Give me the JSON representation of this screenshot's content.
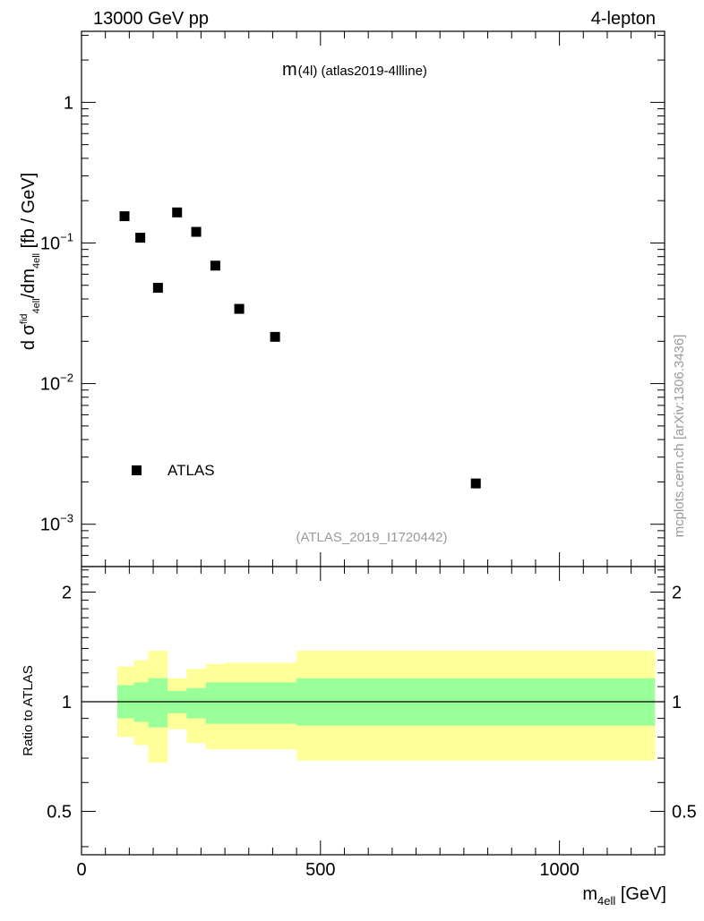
{
  "header": {
    "left_label": "13000 GeV pp",
    "right_label": "4-lepton"
  },
  "plot": {
    "title_main": "m",
    "title_sub": "(4l) (atlas2019-4llline)",
    "ref_label": "(ATLAS_2019_I1720442)",
    "side_label": "mcplots.cern.ch [arXiv:1306.3436]"
  },
  "chart_data": [
    {
      "type": "scatter",
      "ylabel": "d σᶠid4ell/dm4ell [fb / GeV]",
      "ylabel_parts": {
        "a": "d σ",
        "b": "fid",
        "c": "4ell",
        "d": "/dm",
        "e": "4ell",
        "f": " [fb / GeV]"
      },
      "yscale": "log",
      "xlim": [
        0,
        1220
      ],
      "ylim": [
        0.0005,
        3.2
      ],
      "ytick_labels": [
        {
          "value": 1,
          "base": "1",
          "exp": ""
        },
        {
          "value": 0.1,
          "base": "10",
          "exp": "−1"
        },
        {
          "value": 0.01,
          "base": "10",
          "exp": "−2"
        },
        {
          "value": 0.001,
          "base": "10",
          "exp": "−3"
        }
      ],
      "legend": {
        "placement": "bottom-left",
        "label": "ATLAS",
        "color": "#000000"
      },
      "series": [
        {
          "name": "ATLAS",
          "color": "#000000",
          "x": [
            90,
            123,
            160,
            200,
            240,
            280,
            330,
            405,
            825
          ],
          "y": [
            0.155,
            0.109,
            0.048,
            0.165,
            0.12,
            0.069,
            0.034,
            0.0215,
            0.00195
          ]
        }
      ]
    },
    {
      "type": "area",
      "ylabel": "Ratio to ATLAS",
      "ylim": [
        0.38,
        2.35
      ],
      "xlim": [
        0,
        1220
      ],
      "xlabel": "m4ell [GeV]",
      "xlabel_parts": {
        "a": "m",
        "b": "4ell",
        "c": " [GeV]"
      },
      "xtick_labels": [
        "0",
        "500",
        "1000"
      ],
      "xtick_values": [
        0,
        500,
        1000
      ],
      "ytick_labels": [
        "0.5",
        "1",
        "2"
      ],
      "ytick_values": [
        0.5,
        1,
        2
      ],
      "colors": {
        "outer_band": "#ffff99",
        "inner_band": "#99ff99",
        "reference_line": "#000000"
      },
      "bins": {
        "edges": [
          75,
          110,
          140,
          180,
          220,
          260,
          300,
          360,
          450,
          1200
        ],
        "outer_low": [
          0.8,
          0.76,
          0.68,
          0.84,
          0.77,
          0.74,
          0.74,
          0.74,
          0.69
        ],
        "outer_high": [
          1.25,
          1.3,
          1.38,
          1.16,
          1.23,
          1.27,
          1.28,
          1.28,
          1.38
        ],
        "inner_low": [
          0.9,
          0.88,
          0.85,
          0.93,
          0.9,
          0.87,
          0.87,
          0.87,
          0.86
        ],
        "inner_high": [
          1.11,
          1.13,
          1.16,
          1.07,
          1.09,
          1.13,
          1.13,
          1.13,
          1.16
        ]
      }
    }
  ]
}
